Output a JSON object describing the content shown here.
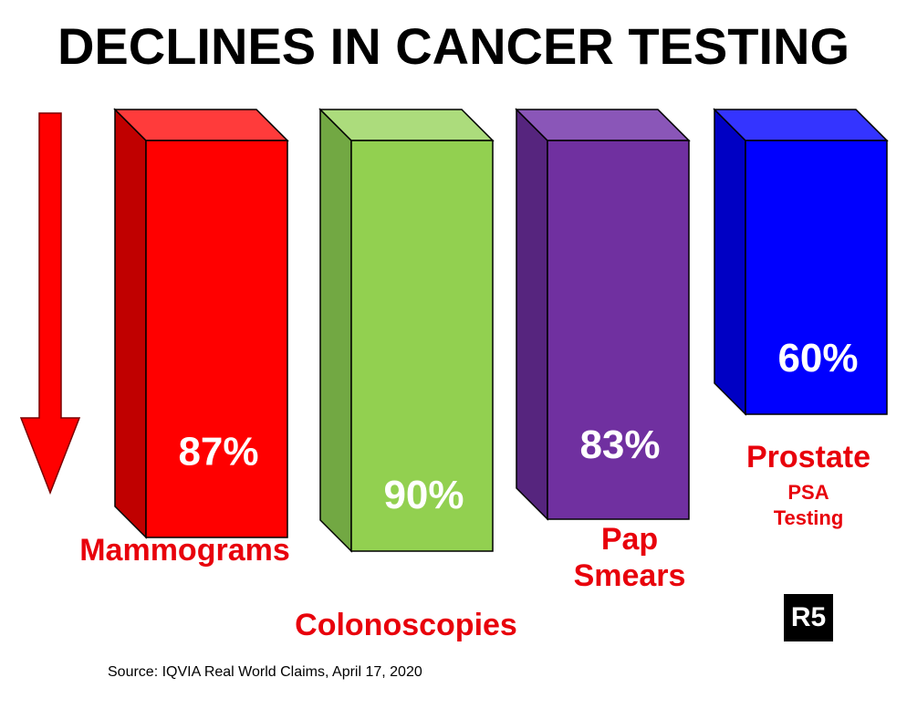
{
  "chart_data": {
    "type": "bar",
    "title": "DECLINES IN CANCER TESTING",
    "categories": [
      "Mammograms",
      "Colonoscopies",
      "Pap Smears",
      "Prostate PSA Testing"
    ],
    "series": [
      {
        "values": [
          87,
          90,
          83,
          60
        ]
      }
    ],
    "value_labels": [
      "87%",
      "90%",
      "83%",
      "60%"
    ],
    "unit": "%",
    "style": "3d-bars",
    "colors": {
      "mammograms": "#ff0000",
      "colonoscopies": "#92d050",
      "pap_smears": "#7030a0",
      "prostate": "#0000ff",
      "label_text": "#e8000b",
      "arrow": "#ff0000"
    },
    "grid": false,
    "legend": "none"
  },
  "labels": {
    "mammograms": "Mammograms",
    "colonoscopies": "Colonoscopies",
    "pap_line1": "Pap",
    "pap_line2": "Smears",
    "prostate_line1": "Prostate",
    "prostate_line2": "PSA",
    "prostate_line3": "Testing"
  },
  "logo": "R5",
  "source": "Source: IQVIA Real World Claims, April 17, 2020",
  "icons": [
    "down-arrow-icon"
  ]
}
